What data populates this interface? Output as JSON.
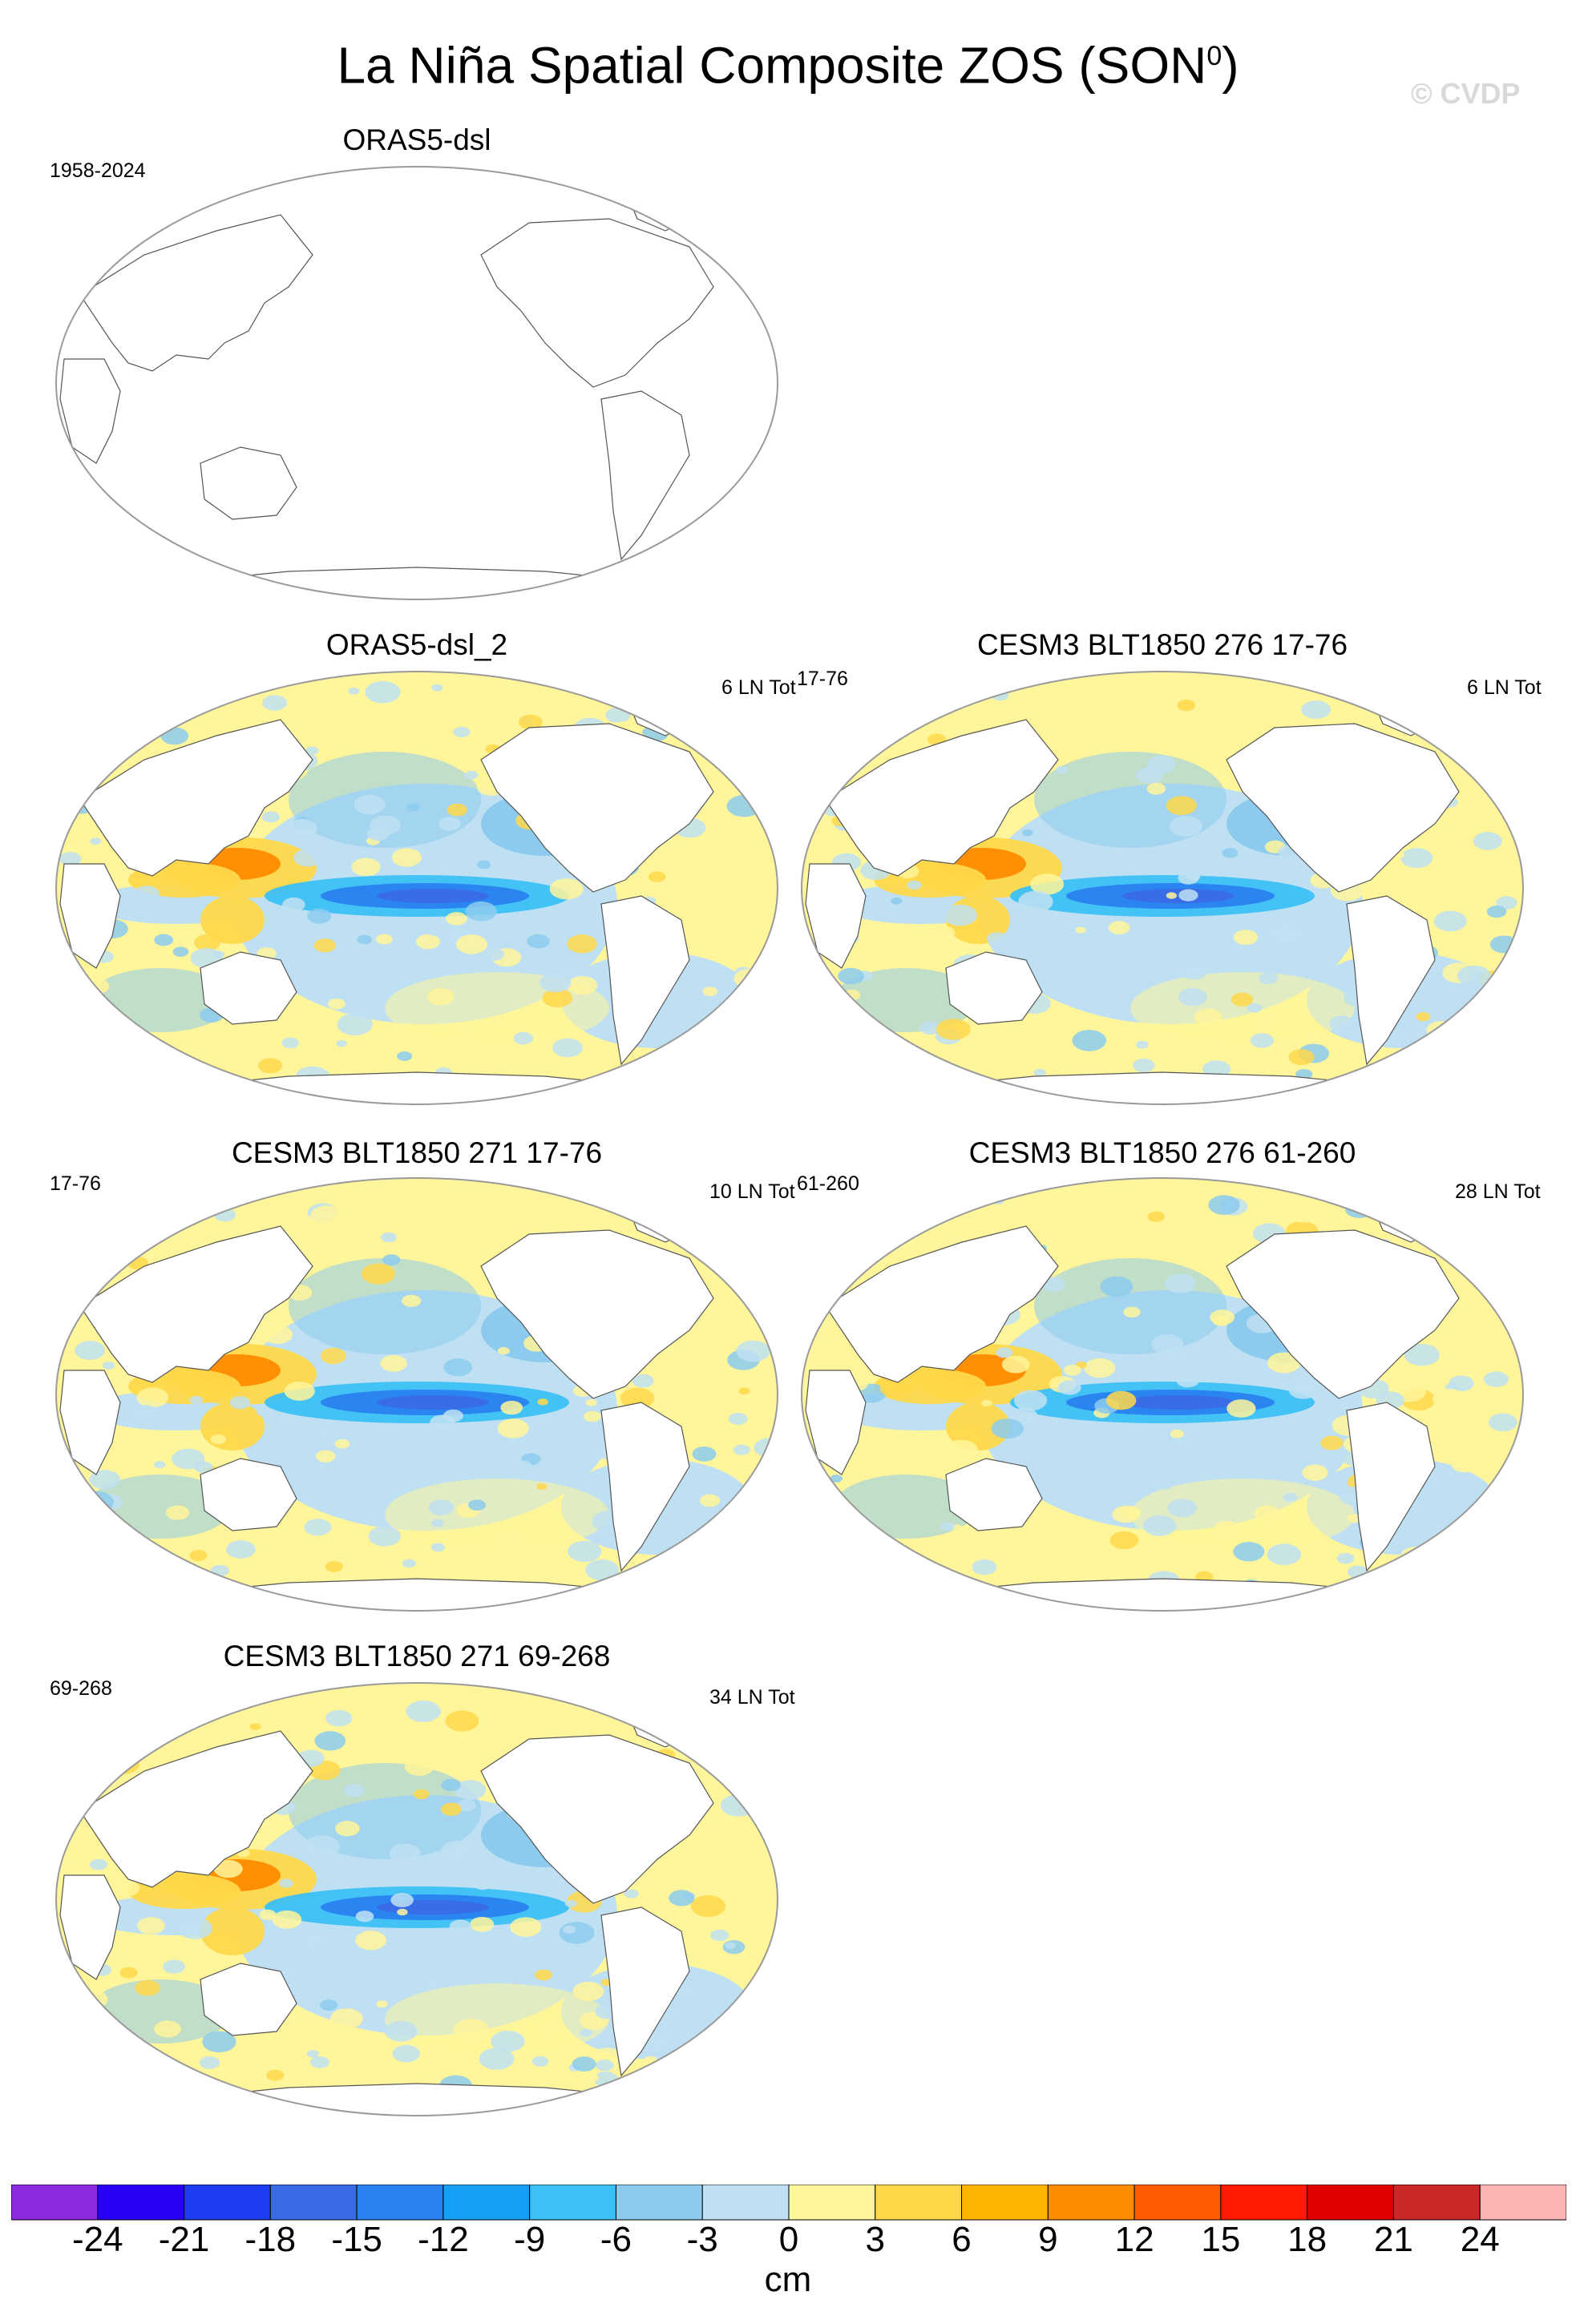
{
  "figure": {
    "title": "La Niña Spatial Composite ZOS (SON",
    "title_superscript": "0",
    "title_close": ")",
    "watermark": "© CVDP"
  },
  "panels": [
    {
      "title": "ORAS5-dsl",
      "left_label": "1958-2024",
      "right_label": "",
      "has_data": false
    },
    {
      "title": "ORAS5-dsl_2",
      "left_label": "",
      "right_label": "6 LN Tot",
      "has_data": true
    },
    {
      "title": "CESM3 BLT1850 276 17-76",
      "left_label": "17-76",
      "right_label": "6 LN Tot",
      "has_data": true
    },
    {
      "title": "CESM3 BLT1850 271 17-76",
      "left_label": "17-76",
      "right_label": "10 LN Tot",
      "has_data": true
    },
    {
      "title": "CESM3 BLT1850 276 61-260",
      "left_label": "61-260",
      "right_label": "28 LN Tot",
      "has_data": true
    },
    {
      "title": "CESM3 BLT1850 271 69-268",
      "left_label": "69-268",
      "right_label": "34 LN Tot",
      "has_data": true
    }
  ],
  "colorbar": {
    "unit": "cm",
    "labels": [
      "-24",
      "-21",
      "-18",
      "-15",
      "-12",
      "-9",
      "-6",
      "-3",
      "0",
      "3",
      "6",
      "9",
      "12",
      "15",
      "18",
      "21",
      "24"
    ],
    "colors": [
      "#8a2be2",
      "#2a00f5",
      "#1f3cf0",
      "#3a6ae6",
      "#2a82f0",
      "#14a0f5",
      "#3cc0f5",
      "#8ccbee",
      "#bfe0f2",
      "#fff59a",
      "#ffd84a",
      "#ffb400",
      "#ff8c00",
      "#ff5a00",
      "#ff1a00",
      "#e00000",
      "#c82828",
      "#ffb4b4"
    ]
  }
}
